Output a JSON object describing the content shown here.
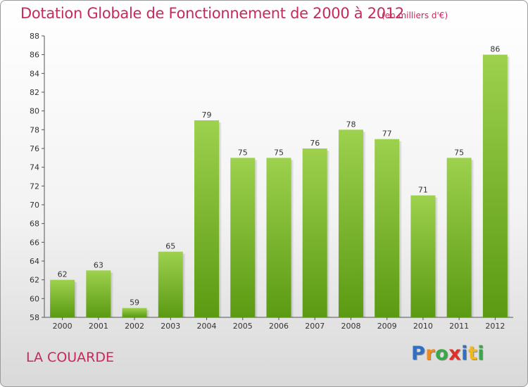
{
  "title": "Dotation Globale de Fonctionnement de 2000 à 2012",
  "subtitle": "(en milliers d'€)",
  "commune": "LA COUARDE",
  "logo": {
    "text": "Proxiti",
    "letters": [
      "P",
      "r",
      "o",
      "x",
      "i",
      "t",
      "i"
    ],
    "colors": [
      "#2f6fc4",
      "#f08a1c",
      "#3aa84a",
      "#e0302a",
      "#2f6fc4",
      "#f0b81c",
      "#3aa84a"
    ]
  },
  "colors": {
    "title": "#c8285a",
    "bar_top": "#9dd14e",
    "bar_bottom": "#5b9a12"
  },
  "chart_data": {
    "type": "bar",
    "categories": [
      "2000",
      "2001",
      "2002",
      "2003",
      "2004",
      "2005",
      "2006",
      "2007",
      "2008",
      "2009",
      "2010",
      "2011",
      "2012"
    ],
    "values": [
      62,
      63,
      59,
      65,
      79,
      75,
      75,
      76,
      78,
      77,
      71,
      75,
      86
    ],
    "title": "Dotation Globale de Fonctionnement de 2000 à 2012",
    "xlabel": "",
    "ylabel": "",
    "ylim": [
      58,
      88
    ],
    "yticks": [
      58,
      60,
      62,
      64,
      66,
      68,
      70,
      72,
      74,
      76,
      78,
      80,
      82,
      84,
      86,
      88
    ],
    "grid": false,
    "data_labels": true
  }
}
